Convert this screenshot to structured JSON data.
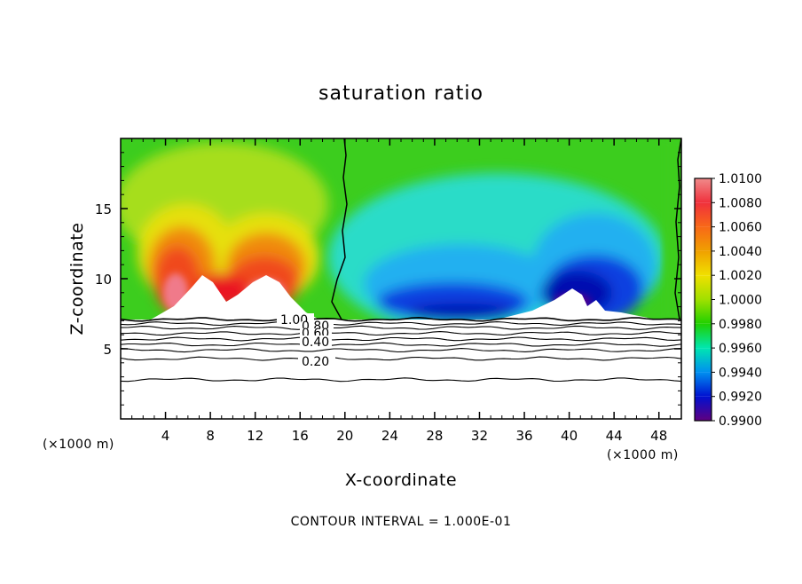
{
  "chart_data": {
    "type": "heatmap",
    "title": "saturation ratio",
    "xlabel": "X-coordinate",
    "ylabel": "Z-coordinate",
    "x_unit_left": "(×1000 m)",
    "x_unit_right": "(×1000 m)",
    "xlim": [
      0,
      50
    ],
    "ylim": [
      0,
      20
    ],
    "x_ticks": [
      "4",
      "8",
      "12",
      "16",
      "20",
      "24",
      "28",
      "32",
      "36",
      "40",
      "44",
      "48"
    ],
    "y_ticks": [
      "5",
      "10",
      "15"
    ],
    "footer": "CONTOUR INTERVAL = 1.000E-01",
    "colorbar": {
      "levels": [
        "1.0100",
        "1.0080",
        "1.0060",
        "1.0040",
        "1.0020",
        "1.0000",
        "0.9980",
        "0.9960",
        "0.9940",
        "0.9920",
        "0.9900"
      ],
      "colors": [
        "#f08a8a",
        "#f0303c",
        "#f86818",
        "#f0a000",
        "#f0e000",
        "#a0e000",
        "#20d000",
        "#00e6b0",
        "#0090f0",
        "#0010d0",
        "#600080"
      ]
    },
    "field_colors": {
      "green": "#3ccd1e",
      "yellow_green": "#a6de1c",
      "yellow": "#e6e010",
      "orange": "#f08a10",
      "red_orange": "#f04a1c",
      "red": "#ea1424",
      "pink": "#f07a8a",
      "cyan": "#2cdcc8",
      "light_blue": "#20b0f0",
      "blue": "#1040e0",
      "dark_blue": "#0010b0",
      "violet": "#500090"
    },
    "contours": {
      "labels": [
        "1.00",
        "0.80",
        "0.60",
        "0.40",
        "0.20"
      ],
      "z_levels": [
        7.1,
        6.8,
        6.5,
        6.1,
        5.7,
        5.3,
        4.9,
        4.3,
        2.8
      ]
    },
    "zero_line_x": [
      20,
      49.8
    ]
  }
}
